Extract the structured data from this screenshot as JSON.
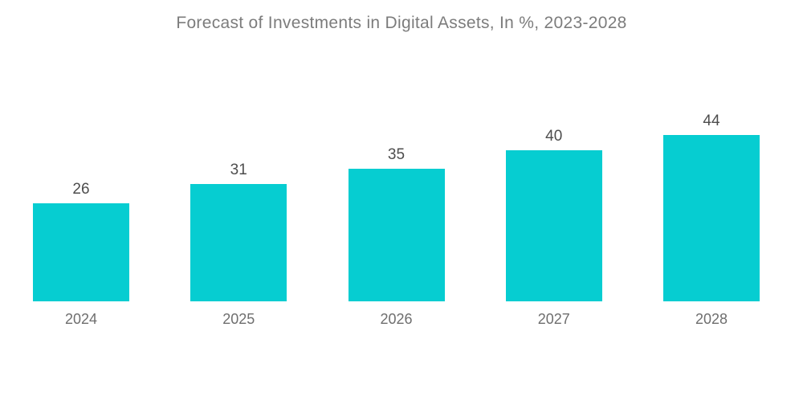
{
  "page": {
    "background": "#FFFFFF"
  },
  "chart_data": {
    "type": "bar",
    "title": "Forecast of Investments in Digital Assets, In %, 2023-2028",
    "categories": [
      "2024",
      "2025",
      "2026",
      "2027",
      "2028"
    ],
    "values": [
      26,
      31,
      35,
      40,
      44
    ],
    "xlabel": "",
    "ylabel": "",
    "ylim": [
      0,
      47
    ],
    "grid": false,
    "legend": false,
    "data_labels": true,
    "bar_color": "#06CDD1",
    "title_color": "#7C7C7C",
    "value_label_color": "#4D4D4D",
    "category_label_color": "#6E6E6E"
  }
}
